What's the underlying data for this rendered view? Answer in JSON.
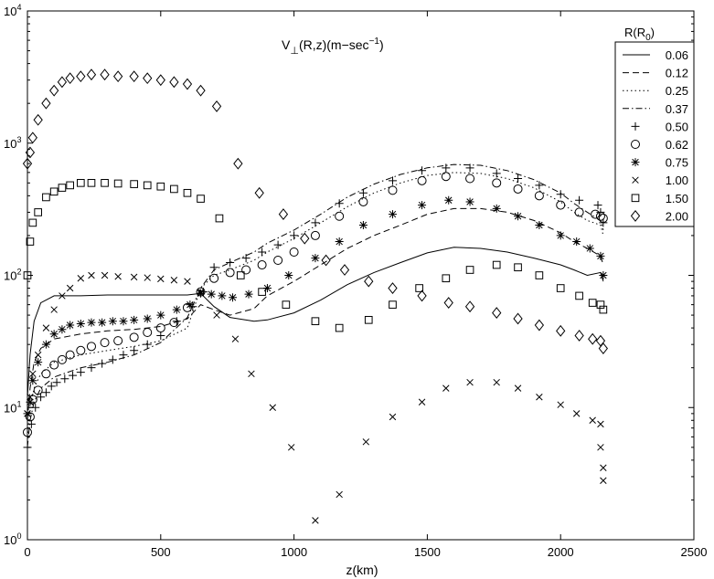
{
  "chart_data": {
    "type": "line",
    "title_parts": {
      "main": "V",
      "sub": "⊥",
      "tail": "(R,z)(m−sec",
      "sup": "−1",
      "close": ")"
    },
    "xlabel": "z(km)",
    "ylabel": "",
    "xlim": [
      0,
      2500
    ],
    "ylim": [
      1,
      10000
    ],
    "yscale": "log",
    "grid": false,
    "x_ticks": [
      0,
      500,
      1000,
      1500,
      2000,
      2500
    ],
    "y_ticks": [
      {
        "value": 1,
        "base": "10",
        "exp": "0"
      },
      {
        "value": 10,
        "base": "10",
        "exp": "1"
      },
      {
        "value": 100,
        "base": "10",
        "exp": "2"
      },
      {
        "value": 1000,
        "base": "10",
        "exp": "3"
      },
      {
        "value": 10000,
        "base": "10",
        "exp": "4"
      }
    ],
    "legend_title_parts": {
      "main": "R(R",
      "sub": "0",
      "close": ")"
    },
    "legend_position": "top-right",
    "series": [
      {
        "name": "0.06",
        "style": "solid",
        "x": [
          0,
          10,
          25,
          50,
          100,
          200,
          300,
          400,
          500,
          600,
          650,
          700,
          760,
          850,
          900,
          1000,
          1100,
          1200,
          1300,
          1400,
          1500,
          1600,
          1700,
          1800,
          1900,
          2000,
          2050,
          2100,
          2150,
          2160
        ],
        "y": [
          12,
          25,
          45,
          62,
          70,
          70,
          71,
          71,
          71,
          71,
          73,
          58,
          48,
          45,
          46,
          52,
          65,
          85,
          105,
          125,
          148,
          163,
          160,
          150,
          135,
          120,
          110,
          100,
          105,
          90
        ]
      },
      {
        "name": "0.12",
        "style": "dashed",
        "x": [
          0,
          10,
          25,
          50,
          100,
          200,
          300,
          400,
          500,
          600,
          650,
          700,
          760,
          850,
          900,
          1000,
          1100,
          1200,
          1300,
          1400,
          1500,
          1600,
          1700,
          1800,
          1900,
          2000,
          2050,
          2100,
          2150,
          2160
        ],
        "y": [
          8,
          14,
          22,
          28,
          33,
          36,
          38,
          39,
          41,
          47,
          60,
          55,
          50,
          56,
          70,
          90,
          120,
          160,
          200,
          240,
          290,
          320,
          320,
          300,
          260,
          210,
          180,
          160,
          140,
          120
        ]
      },
      {
        "name": "0.25",
        "style": "dotted",
        "x": [
          0,
          10,
          25,
          50,
          100,
          200,
          300,
          400,
          500,
          600,
          650,
          700,
          760,
          850,
          900,
          1000,
          1100,
          1200,
          1300,
          1400,
          1500,
          1600,
          1700,
          1800,
          1900,
          2000,
          2050,
          2100,
          2150,
          2160
        ],
        "y": [
          6,
          10,
          14,
          18,
          22,
          25,
          27,
          29,
          32,
          40,
          80,
          100,
          110,
          130,
          150,
          190,
          250,
          330,
          420,
          500,
          570,
          600,
          590,
          540,
          460,
          360,
          300,
          260,
          240,
          200
        ]
      },
      {
        "name": "0.37",
        "style": "dashdot",
        "x": [
          0,
          10,
          25,
          50,
          100,
          200,
          300,
          400,
          500,
          600,
          650,
          700,
          760,
          850,
          900,
          1000,
          1100,
          1200,
          1300,
          1400,
          1500,
          1600,
          1700,
          1800,
          1900,
          2000,
          2050,
          2100,
          2150,
          2160
        ],
        "y": [
          5,
          8,
          11,
          14,
          17,
          20,
          22,
          25,
          31,
          48,
          80,
          110,
          125,
          150,
          175,
          220,
          290,
          390,
          490,
          580,
          650,
          690,
          680,
          620,
          530,
          420,
          350,
          300,
          260,
          220
        ]
      },
      {
        "name": "0.50",
        "marker": "plus",
        "x": [
          0,
          15,
          30,
          50,
          70,
          90,
          110,
          140,
          170,
          200,
          240,
          280,
          320,
          360,
          400,
          450,
          500,
          560,
          620,
          660,
          700,
          760,
          820,
          880,
          940,
          1000,
          1080,
          1170,
          1260,
          1370,
          1480,
          1570,
          1660,
          1760,
          1840,
          1920,
          2000,
          2070,
          2140,
          2150,
          2160
        ],
        "y": [
          5,
          7.5,
          10,
          12,
          13,
          14.5,
          15.5,
          16.5,
          17.5,
          18.5,
          20,
          21.5,
          23,
          25,
          27,
          30,
          35,
          45,
          58,
          75,
          115,
          125,
          135,
          150,
          170,
          200,
          250,
          350,
          420,
          520,
          620,
          650,
          650,
          590,
          540,
          480,
          410,
          370,
          340,
          300,
          250
        ]
      },
      {
        "name": "0.62",
        "marker": "circle",
        "x": [
          0,
          10,
          20,
          40,
          70,
          100,
          130,
          160,
          200,
          240,
          290,
          340,
          400,
          450,
          500,
          550,
          600,
          650,
          700,
          760,
          820,
          880,
          940,
          1000,
          1080,
          1170,
          1260,
          1370,
          1480,
          1570,
          1660,
          1760,
          1840,
          1920,
          2000,
          2070,
          2130,
          2150,
          2160
        ],
        "y": [
          6.5,
          8.5,
          11.5,
          13.5,
          18,
          21,
          23,
          25,
          27,
          29,
          31,
          32,
          34,
          37,
          40,
          44,
          57,
          75,
          95,
          105,
          110,
          120,
          130,
          150,
          200,
          280,
          360,
          440,
          520,
          560,
          540,
          500,
          450,
          400,
          340,
          300,
          290,
          280,
          270
        ]
      },
      {
        "name": "0.75",
        "marker": "asterisk",
        "x": [
          0,
          10,
          20,
          40,
          70,
          100,
          130,
          160,
          200,
          240,
          280,
          320,
          360,
          400,
          450,
          500,
          560,
          610,
          650,
          690,
          730,
          770,
          830,
          900,
          980,
          1080,
          1170,
          1260,
          1370,
          1480,
          1580,
          1660,
          1760,
          1840,
          1920,
          2000,
          2060,
          2110,
          2150,
          2160
        ],
        "y": [
          9,
          11,
          16,
          22,
          30,
          36,
          39,
          42,
          43,
          44,
          44,
          45,
          45,
          46,
          47,
          50,
          55,
          60,
          73,
          72,
          70,
          68,
          72,
          80,
          100,
          135,
          180,
          240,
          290,
          340,
          370,
          360,
          320,
          280,
          240,
          200,
          180,
          160,
          140,
          100
        ]
      },
      {
        "name": "1.00",
        "marker": "cross",
        "x": [
          0,
          10,
          20,
          40,
          70,
          100,
          130,
          160,
          200,
          240,
          290,
          340,
          400,
          450,
          500,
          550,
          600,
          650,
          710,
          780,
          840,
          920,
          990,
          1080,
          1170,
          1270,
          1370,
          1480,
          1570,
          1660,
          1760,
          1840,
          1920,
          2000,
          2060,
          2120,
          2150,
          2150,
          2160,
          2160
        ],
        "y": [
          9,
          12,
          18,
          25,
          40,
          55,
          70,
          80,
          95,
          100,
          100,
          98,
          97,
          96,
          94,
          92,
          90,
          75,
          50,
          33,
          18,
          10,
          5,
          1.4,
          2.2,
          5.5,
          8.5,
          11,
          14,
          15.5,
          15.5,
          14,
          12,
          10.5,
          9,
          8,
          7.5,
          5,
          3.5,
          2.8
        ]
      },
      {
        "name": "1.50",
        "marker": "square",
        "x": [
          0,
          10,
          20,
          40,
          70,
          100,
          130,
          160,
          200,
          240,
          290,
          340,
          400,
          450,
          500,
          550,
          600,
          650,
          720,
          800,
          880,
          970,
          1080,
          1170,
          1280,
          1370,
          1470,
          1570,
          1660,
          1760,
          1840,
          1920,
          2000,
          2070,
          2120,
          2150,
          2160
        ],
        "y": [
          100,
          180,
          250,
          300,
          390,
          430,
          460,
          480,
          500,
          500,
          500,
          495,
          490,
          480,
          470,
          450,
          420,
          380,
          270,
          100,
          75,
          60,
          45,
          40,
          46,
          60,
          80,
          95,
          110,
          120,
          115,
          100,
          80,
          70,
          62,
          60,
          55
        ]
      },
      {
        "name": "2.00",
        "marker": "diamond",
        "x": [
          0,
          10,
          20,
          40,
          70,
          100,
          130,
          160,
          200,
          240,
          290,
          340,
          400,
          450,
          500,
          550,
          600,
          650,
          710,
          790,
          870,
          960,
          1040,
          1120,
          1190,
          1280,
          1370,
          1480,
          1580,
          1660,
          1760,
          1840,
          1920,
          2000,
          2070,
          2120,
          2150,
          2160
        ],
        "y": [
          700,
          850,
          1100,
          1500,
          2000,
          2500,
          2900,
          3100,
          3200,
          3300,
          3300,
          3200,
          3200,
          3100,
          3000,
          2900,
          2800,
          2500,
          1900,
          700,
          420,
          290,
          190,
          130,
          110,
          90,
          80,
          70,
          62,
          58,
          52,
          47,
          42,
          38,
          35,
          33,
          32,
          28
        ]
      }
    ]
  }
}
